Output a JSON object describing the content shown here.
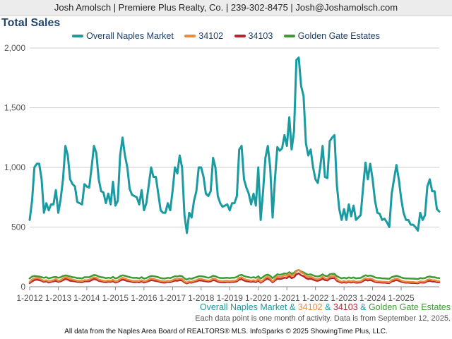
{
  "header": {
    "text": "Josh Amolsch | Premiere Plus Realty, Co. | 239-302-8475 | Josh@Joshamolsch.com"
  },
  "footnote": {
    "series_names": [
      "Overall Naples Market",
      "34102",
      "34103",
      "Golden Gate Estates"
    ],
    "joiner": " & ",
    "note": "Each data point is one month of activity. Data is from September 12, 2025.",
    "source": "All data from the Naples Area Board of REALTORS® MLS. InfoSparks © 2025 ShowingTime Plus, LLC."
  },
  "chart_data": {
    "type": "line",
    "title": "Total Sales",
    "legend_position": "top",
    "grid": true,
    "x_start": "2012-01",
    "x_ticks": [
      "1-2012",
      "1-2013",
      "1-2014",
      "1-2015",
      "1-2016",
      "1-2017",
      "1-2018",
      "1-2019",
      "1-2020",
      "1-2021",
      "1-2022",
      "1-2023",
      "1-2024",
      "1-2025"
    ],
    "y_ticks": [
      "0",
      "500",
      "1,000",
      "1,500",
      "2,000"
    ],
    "ylim": [
      0,
      2000
    ],
    "series": [
      {
        "name": "Overall Naples Market",
        "color": "#1a9ba1",
        "values": [
          560,
          720,
          1000,
          1030,
          1030,
          900,
          620,
          700,
          640,
          690,
          690,
          810,
          620,
          730,
          900,
          1180,
          1100,
          900,
          860,
          840,
          710,
          700,
          690,
          860,
          840,
          830,
          1000,
          1180,
          1120,
          900,
          800,
          790,
          700,
          780,
          690,
          880,
          680,
          720,
          1100,
          1250,
          1100,
          1000,
          820,
          770,
          760,
          750,
          690,
          810,
          640,
          700,
          850,
          1000,
          920,
          920,
          780,
          640,
          620,
          620,
          700,
          640,
          800,
          1000,
          950,
          1100,
          1000,
          600,
          450,
          620,
          580,
          720,
          800,
          1000,
          1000,
          920,
          780,
          760,
          800,
          1080,
          1000,
          760,
          700,
          670,
          680,
          690,
          640,
          700,
          700,
          760,
          1150,
          1180,
          900,
          830,
          780,
          690,
          780,
          680,
          1000,
          560,
          800,
          1080,
          1180,
          1000,
          580,
          900,
          1170,
          1140,
          1160,
          1270,
          1180,
          1420,
          1150,
          1300,
          1900,
          1920,
          1680,
          1600,
          1200,
          1100,
          1150,
          1000,
          900,
          870,
          1000,
          1180,
          920,
          910,
          1220,
          1250,
          1270,
          850,
          650,
          560,
          650,
          560,
          690,
          590,
          680,
          560,
          580,
          600,
          830,
          1040,
          900,
          1030,
          900,
          720,
          620,
          610,
          560,
          570,
          540,
          500,
          780,
          900,
          1020,
          900,
          740,
          620,
          560,
          560,
          520,
          520,
          500,
          470,
          620,
          560,
          600,
          840,
          900,
          800,
          800,
          650,
          630
        ]
      },
      {
        "name": "34102",
        "color": "#ee8a3c",
        "values": [
          40,
          60,
          70,
          75,
          70,
          60,
          50,
          55,
          45,
          50,
          55,
          65,
          50,
          55,
          70,
          80,
          75,
          65,
          60,
          55,
          50,
          50,
          48,
          55,
          55,
          58,
          70,
          80,
          75,
          60,
          55,
          50,
          48,
          52,
          50,
          58,
          45,
          50,
          65,
          75,
          70,
          60,
          55,
          50,
          48,
          50,
          46,
          55,
          45,
          50,
          60,
          70,
          65,
          60,
          55,
          48,
          45,
          45,
          50,
          48,
          55,
          65,
          62,
          70,
          65,
          45,
          35,
          45,
          42,
          50,
          55,
          65,
          65,
          60,
          55,
          52,
          55,
          70,
          65,
          52,
          48,
          46,
          48,
          50,
          46,
          50,
          50,
          55,
          75,
          80,
          65,
          58,
          55,
          50,
          55,
          48,
          65,
          42,
          55,
          75,
          85,
          70,
          45,
          65,
          85,
          80,
          85,
          95,
          90,
          110,
          90,
          100,
          130,
          140,
          120,
          110,
          90,
          80,
          85,
          75,
          65,
          62,
          70,
          85,
          70,
          65,
          85,
          90,
          90,
          62,
          50,
          42,
          48,
          42,
          50,
          44,
          50,
          42,
          44,
          45,
          60,
          72,
          65,
          70,
          62,
          50,
          45,
          45,
          42,
          42,
          40,
          38,
          55,
          62,
          70,
          62,
          52,
          45,
          42,
          42,
          40,
          40,
          38,
          36,
          45,
          42,
          44,
          58,
          62,
          55,
          55,
          48,
          46
        ]
      },
      {
        "name": "34103",
        "color": "#b4282d",
        "values": [
          30,
          45,
          55,
          60,
          55,
          50,
          40,
          45,
          35,
          40,
          45,
          50,
          40,
          45,
          55,
          65,
          60,
          50,
          48,
          45,
          40,
          40,
          38,
          45,
          45,
          46,
          55,
          65,
          60,
          50,
          45,
          40,
          38,
          42,
          40,
          46,
          35,
          40,
          52,
          60,
          55,
          48,
          45,
          40,
          38,
          40,
          36,
          45,
          35,
          40,
          48,
          55,
          52,
          48,
          45,
          38,
          35,
          35,
          40,
          38,
          45,
          52,
          50,
          55,
          52,
          36,
          28,
          36,
          34,
          40,
          45,
          52,
          52,
          48,
          45,
          42,
          45,
          55,
          52,
          42,
          38,
          37,
          38,
          40,
          37,
          40,
          40,
          45,
          60,
          64,
          52,
          46,
          44,
          40,
          44,
          38,
          52,
          34,
          45,
          60,
          68,
          56,
          36,
          52,
          68,
          64,
          68,
          76,
          72,
          88,
          72,
          80,
          104,
          112,
          96,
          88,
          72,
          64,
          68,
          60,
          52,
          50,
          56,
          68,
          56,
          52,
          68,
          72,
          72,
          50,
          40,
          34,
          38,
          34,
          40,
          35,
          40,
          34,
          35,
          36,
          48,
          58,
          52,
          56,
          50,
          40,
          36,
          36,
          34,
          34,
          32,
          30,
          44,
          50,
          56,
          50,
          42,
          36,
          34,
          34,
          32,
          32,
          30,
          29,
          36,
          34,
          35,
          46,
          50,
          44,
          44,
          38,
          37
        ]
      },
      {
        "name": "Golden Gate Estates",
        "color": "#3f9a35",
        "values": [
          70,
          85,
          90,
          88,
          85,
          80,
          75,
          80,
          70,
          75,
          80,
          82,
          75,
          80,
          90,
          95,
          92,
          85,
          80,
          78,
          72,
          72,
          70,
          80,
          80,
          80,
          90,
          98,
          95,
          85,
          80,
          78,
          72,
          76,
          72,
          82,
          70,
          75,
          88,
          95,
          92,
          85,
          80,
          76,
          74,
          75,
          70,
          80,
          68,
          72,
          82,
          90,
          88,
          85,
          80,
          72,
          70,
          70,
          75,
          72,
          80,
          88,
          85,
          92,
          88,
          70,
          60,
          70,
          66,
          75,
          80,
          88,
          88,
          85,
          80,
          76,
          80,
          92,
          88,
          78,
          74,
          72,
          74,
          75,
          72,
          76,
          76,
          82,
          96,
          100,
          90,
          84,
          80,
          76,
          80,
          74,
          88,
          68,
          82,
          96,
          102,
          92,
          72,
          88,
          104,
          100,
          104,
          112,
          108,
          122,
          108,
          116,
          135,
          140,
          128,
          120,
          108,
          100,
          104,
          96,
          88,
          86,
          92,
          104,
          92,
          88,
          104,
          108,
          108,
          88,
          78,
          70,
          76,
          70,
          78,
          72,
          78,
          70,
          72,
          74,
          86,
          96,
          90,
          94,
          88,
          78,
          74,
          74,
          70,
          70,
          68,
          66,
          80,
          86,
          92,
          86,
          78,
          72,
          70,
          70,
          68,
          68,
          66,
          64,
          72,
          70,
          72,
          82,
          86,
          80,
          80,
          74,
          72
        ]
      }
    ]
  }
}
